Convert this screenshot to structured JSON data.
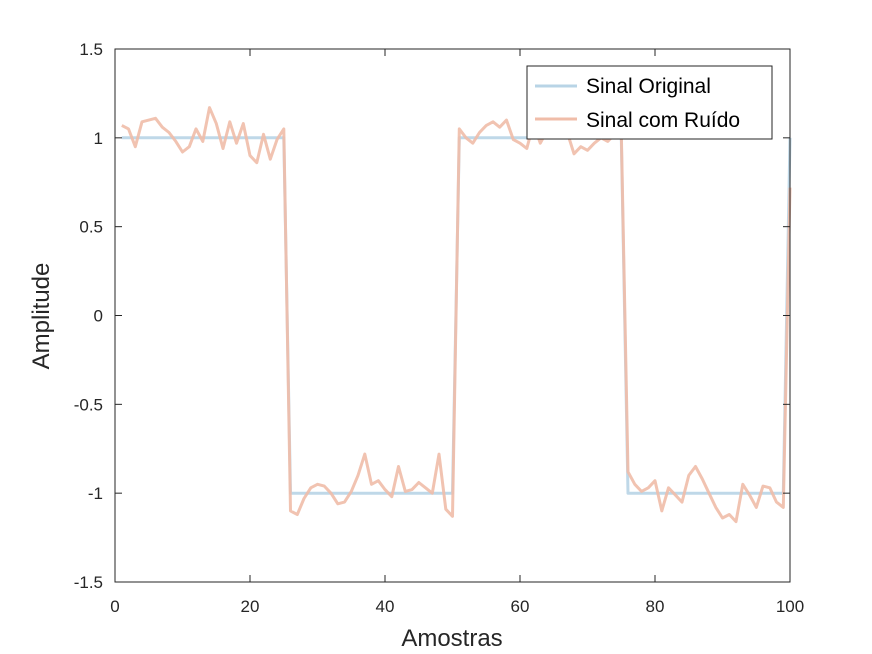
{
  "chart_data": {
    "type": "line",
    "title": "",
    "xlabel": "Amostras",
    "ylabel": "Amplitude",
    "xlim": [
      0,
      100
    ],
    "ylim": [
      -1.5,
      1.5
    ],
    "xticks": [
      0,
      20,
      40,
      60,
      80,
      100
    ],
    "yticks": [
      -1.5,
      -1,
      -0.5,
      0,
      0.5,
      1,
      1.5
    ],
    "xtick_labels": [
      "0",
      "20",
      "40",
      "60",
      "80",
      "100"
    ],
    "ytick_labels": [
      "-1.5",
      "-1",
      "-0.5",
      "0",
      "0.5",
      "1",
      "1.5"
    ],
    "grid": false,
    "legend_position": "top-right",
    "x": [
      1,
      2,
      3,
      4,
      5,
      6,
      7,
      8,
      9,
      10,
      11,
      12,
      13,
      14,
      15,
      16,
      17,
      18,
      19,
      20,
      21,
      22,
      23,
      24,
      25,
      26,
      27,
      28,
      29,
      30,
      31,
      32,
      33,
      34,
      35,
      36,
      37,
      38,
      39,
      40,
      41,
      42,
      43,
      44,
      45,
      46,
      47,
      48,
      49,
      50,
      51,
      52,
      53,
      54,
      55,
      56,
      57,
      58,
      59,
      60,
      61,
      62,
      63,
      64,
      65,
      66,
      67,
      68,
      69,
      70,
      71,
      72,
      73,
      74,
      75,
      76,
      77,
      78,
      79,
      80,
      81,
      82,
      83,
      84,
      85,
      86,
      87,
      88,
      89,
      90,
      91,
      92,
      93,
      94,
      95,
      96,
      97,
      98,
      99,
      100
    ],
    "series": [
      {
        "name": "Sinal Original",
        "color": "#b8d4e6",
        "values": [
          1,
          1,
          1,
          1,
          1,
          1,
          1,
          1,
          1,
          1,
          1,
          1,
          1,
          1,
          1,
          1,
          1,
          1,
          1,
          1,
          1,
          1,
          1,
          1,
          1,
          -1,
          -1,
          -1,
          -1,
          -1,
          -1,
          -1,
          -1,
          -1,
          -1,
          -1,
          -1,
          -1,
          -1,
          -1,
          -1,
          -1,
          -1,
          -1,
          -1,
          -1,
          -1,
          -1,
          -1,
          -1,
          1,
          1,
          1,
          1,
          1,
          1,
          1,
          1,
          1,
          1,
          1,
          1,
          1,
          1,
          1,
          1,
          1,
          1,
          1,
          1,
          1,
          1,
          1,
          1,
          1,
          -1,
          -1,
          -1,
          -1,
          -1,
          -1,
          -1,
          -1,
          -1,
          -1,
          -1,
          -1,
          -1,
          -1,
          -1,
          -1,
          -1,
          -1,
          -1,
          -1,
          -1,
          -1,
          -1,
          -1,
          1
        ]
      },
      {
        "name": "Sinal com Ruído",
        "color": "#f0bda9",
        "values": [
          1.07,
          1.05,
          0.95,
          1.09,
          1.1,
          1.11,
          1.06,
          1.03,
          0.98,
          0.92,
          0.95,
          1.05,
          0.98,
          1.17,
          1.08,
          0.94,
          1.09,
          0.97,
          1.08,
          0.9,
          0.86,
          1.02,
          0.88,
          0.99,
          1.05,
          -1.1,
          -1.12,
          -1.03,
          -0.97,
          -0.95,
          -0.96,
          -1.0,
          -1.06,
          -1.05,
          -0.99,
          -0.9,
          -0.78,
          -0.95,
          -0.93,
          -0.98,
          -1.02,
          -0.85,
          -0.99,
          -0.98,
          -0.94,
          -0.97,
          -1.0,
          -0.78,
          -1.09,
          -1.13,
          1.05,
          1.0,
          0.97,
          1.03,
          1.07,
          1.09,
          1.06,
          1.1,
          0.99,
          0.97,
          0.94,
          1.08,
          0.97,
          1.04,
          1.0,
          1.06,
          1.03,
          0.91,
          0.95,
          0.93,
          0.97,
          1.0,
          0.98,
          1.02,
          1.03,
          -0.88,
          -0.95,
          -0.99,
          -0.97,
          -0.93,
          -1.1,
          -0.97,
          -1.01,
          -1.05,
          -0.9,
          -0.85,
          -0.92,
          -1.0,
          -1.08,
          -1.14,
          -1.12,
          -1.16,
          -0.95,
          -1.01,
          -1.08,
          -0.96,
          -0.97,
          -1.05,
          -1.08,
          0.72
        ]
      }
    ]
  }
}
